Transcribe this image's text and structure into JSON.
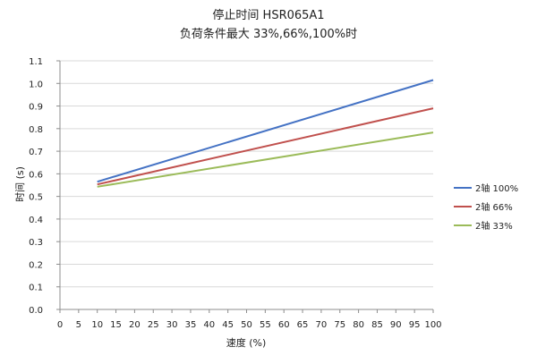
{
  "chart_data": {
    "type": "line",
    "title": "停止时间 HSR065A1",
    "subtitle": "负荷条件最大 33%,66%,100%时",
    "xlabel": "速度 (%)",
    "ylabel": "时间 (s)",
    "xlim": [
      0,
      100
    ],
    "ylim": [
      0.0,
      1.1
    ],
    "x_ticks": [
      0,
      5,
      10,
      15,
      20,
      25,
      30,
      35,
      40,
      45,
      50,
      55,
      60,
      65,
      70,
      75,
      80,
      85,
      90,
      95,
      100
    ],
    "y_ticks": [
      0.0,
      0.1,
      0.2,
      0.3,
      0.4,
      0.5,
      0.6,
      0.7,
      0.8,
      0.9,
      1.0,
      1.1
    ],
    "x_tick_labels": [
      "0",
      "5",
      "10",
      "15",
      "20",
      "25",
      "30",
      "35",
      "40",
      "45",
      "50",
      "55",
      "60",
      "65",
      "70",
      "75",
      "80",
      "85",
      "90",
      "95",
      "100"
    ],
    "y_tick_labels": [
      "0.0",
      "0.1",
      "0.2",
      "0.3",
      "0.4",
      "0.5",
      "0.6",
      "0.7",
      "0.8",
      "0.9",
      "1.0",
      "1.1"
    ],
    "grid": "horizontal",
    "legend_position": "right",
    "series": [
      {
        "name": "2轴 100%",
        "color": "#4472c4",
        "x": [
          10,
          100
        ],
        "y": [
          0.565,
          1.015
        ]
      },
      {
        "name": "2轴 66%",
        "color": "#c0504d",
        "x": [
          10,
          100
        ],
        "y": [
          0.553,
          0.89
        ]
      },
      {
        "name": "2轴 33%",
        "color": "#9bbb59",
        "x": [
          10,
          100
        ],
        "y": [
          0.543,
          0.783
        ]
      }
    ]
  }
}
